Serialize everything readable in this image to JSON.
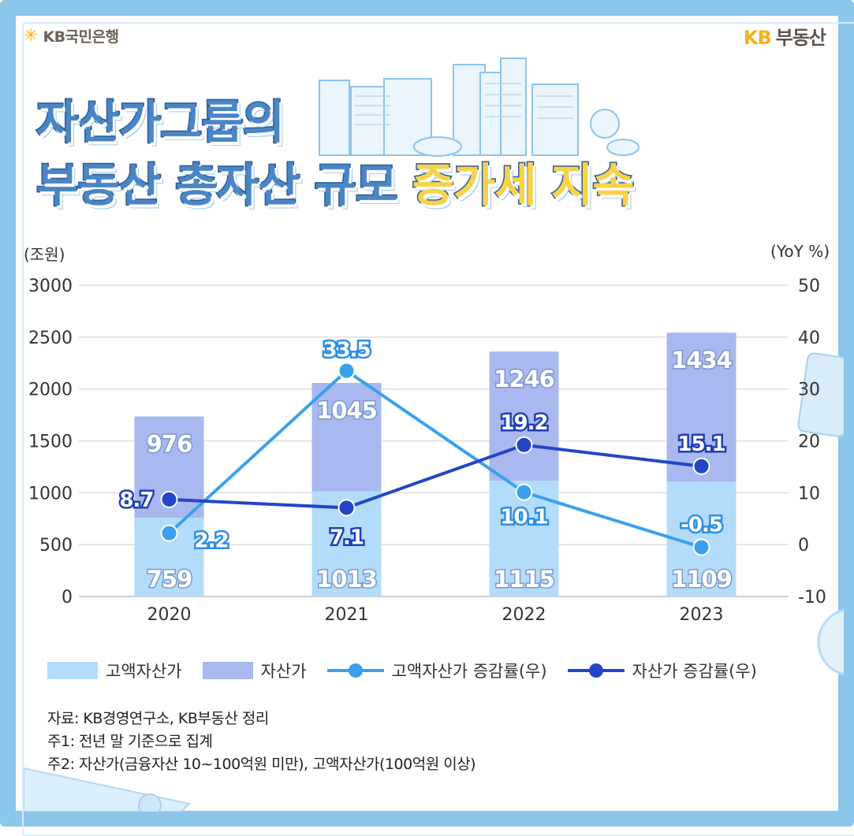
{
  "brand": {
    "bank_symbol": "✳",
    "bank_name": "KB국민은행",
    "right_kb": "KB",
    "right_name": "부동산"
  },
  "title": {
    "line1": "자산가그룹의",
    "line2_prefix": "부동산 총자산 규모 ",
    "line2_highlight": "증가세 지속"
  },
  "colors": {
    "frame": "#8cc6ea",
    "bar_high": "#b3dcfa",
    "bar_asset": "#a9b8ee",
    "line_high": "#3aa0ee",
    "line_asset": "#2346c8"
  },
  "chart_data": {
    "type": "bar",
    "stacked": true,
    "categories": [
      "2020",
      "2021",
      "2022",
      "2023"
    ],
    "left_axis": {
      "label": "(조원)",
      "ticks": [
        "0",
        "500",
        "1000",
        "1500",
        "2000",
        "2500",
        "3000"
      ],
      "range": [
        0,
        3000
      ]
    },
    "right_axis": {
      "label": "(YoY %)",
      "ticks": [
        "-10",
        "0",
        "10",
        "20",
        "30",
        "40",
        "50"
      ],
      "range": [
        -10,
        50
      ]
    },
    "series": [
      {
        "name": "고액자산가",
        "kind": "bar",
        "axis": "left",
        "values": [
          759,
          1013,
          1115,
          1109
        ],
        "labels": [
          "759",
          "1013",
          "1115",
          "1109"
        ]
      },
      {
        "name": "자산가",
        "kind": "bar",
        "axis": "left",
        "values": [
          976,
          1045,
          1246,
          1434
        ],
        "labels": [
          "976",
          "1045",
          "1246",
          "1434"
        ]
      },
      {
        "name": "고액자산가 증감률(우)",
        "kind": "line",
        "axis": "right",
        "values": [
          2.2,
          33.5,
          10.1,
          -0.5
        ],
        "labels": [
          "2.2",
          "33.5",
          "10.1",
          "-0.5"
        ]
      },
      {
        "name": "자산가 증감률(우)",
        "kind": "line",
        "axis": "right",
        "values": [
          8.7,
          7.1,
          19.2,
          15.1
        ],
        "labels": [
          "8.7",
          "7.1",
          "19.2",
          "15.1"
        ]
      }
    ],
    "grid": true,
    "legend_position": "bottom"
  },
  "legend": {
    "items": [
      "고액자산가",
      "자산가",
      "고액자산가 증감률(우)",
      "자산가 증감률(우)"
    ]
  },
  "notes": [
    "자료: KB경영연구소, KB부동산 정리",
    "주1: 전년 말 기준으로 집계",
    "주2: 자산가(금융자산 10~100억원 미만), 고액자산가(100억원 이상)"
  ]
}
